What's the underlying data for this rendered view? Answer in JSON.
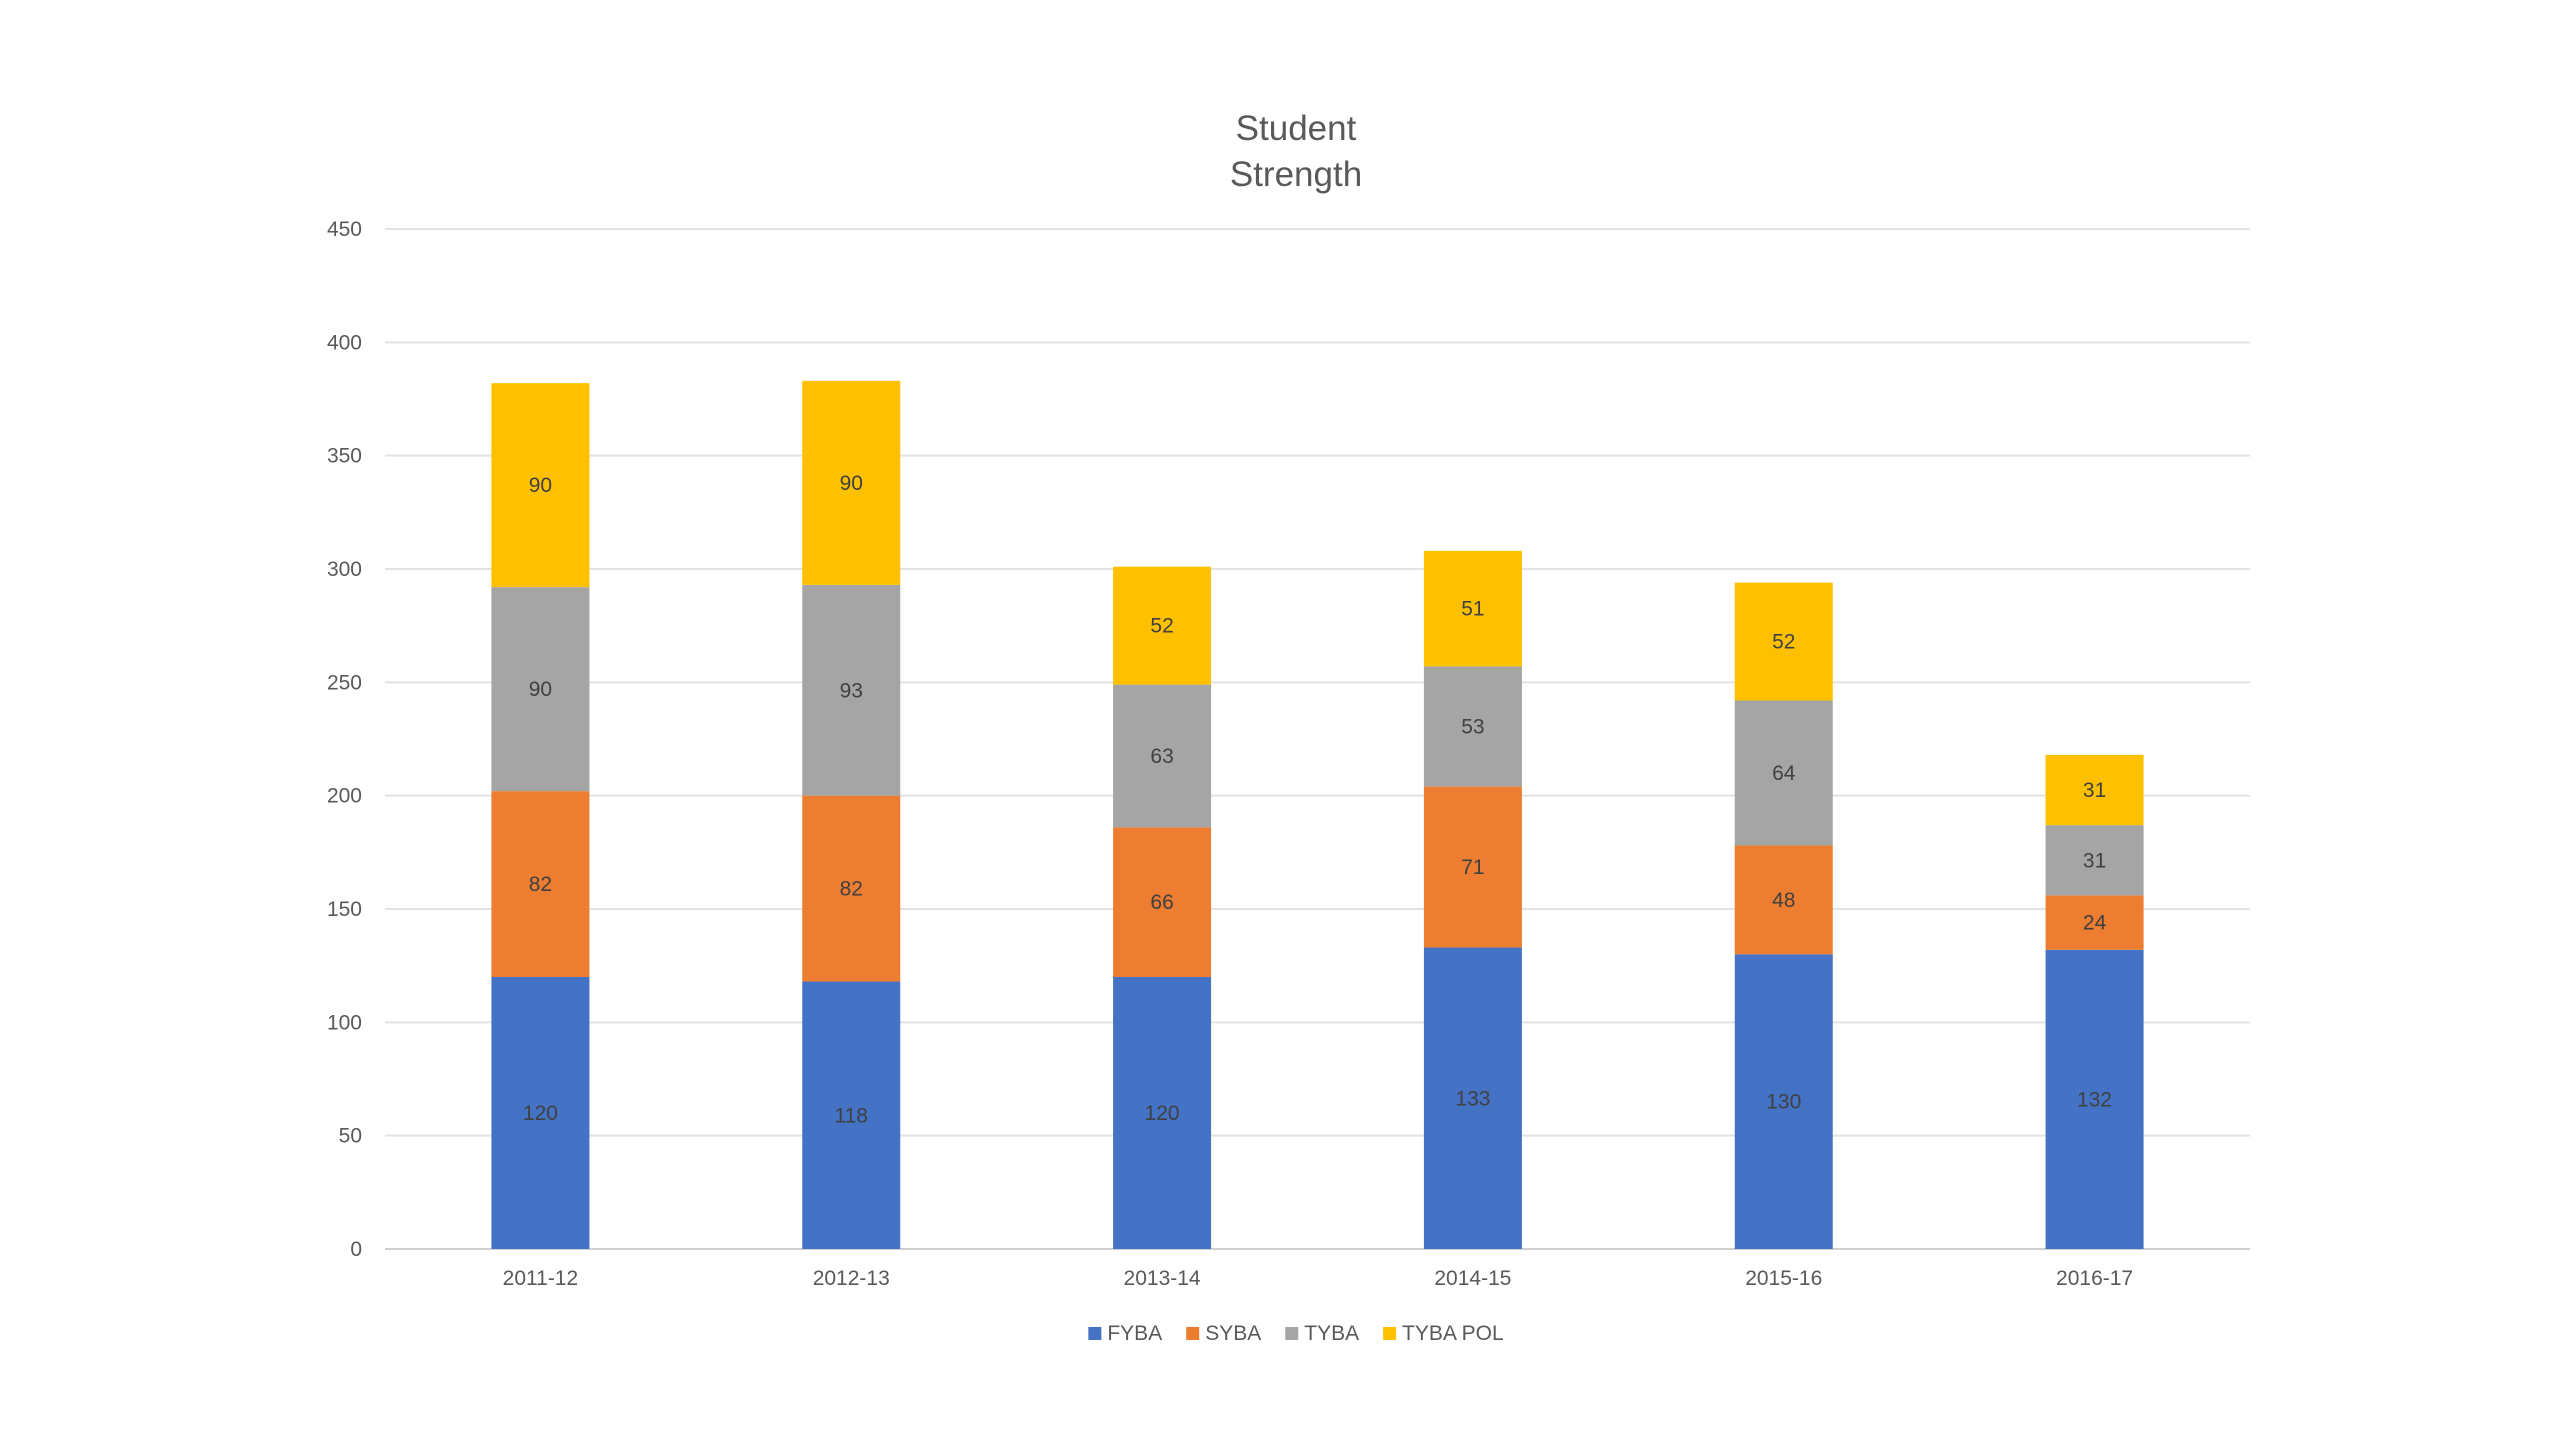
{
  "chart_data": {
    "type": "bar",
    "stacked": true,
    "title": [
      "Student",
      "Strength"
    ],
    "xlabel": "",
    "ylabel": "",
    "ylim": [
      0,
      450
    ],
    "yticks": [
      0,
      50,
      100,
      150,
      200,
      250,
      300,
      350,
      400,
      450
    ],
    "grid": true,
    "legend_position": "bottom",
    "categories": [
      "2011-12",
      "2012-13",
      "2013-14",
      "2014-15",
      "2015-16",
      "2016-17"
    ],
    "series": [
      {
        "name": "FYBA",
        "color": "#4472C4",
        "values": [
          120,
          118,
          120,
          133,
          130,
          132
        ]
      },
      {
        "name": "SYBA",
        "color": "#ED7D31",
        "values": [
          82,
          82,
          66,
          71,
          48,
          24
        ]
      },
      {
        "name": "TYBA",
        "color": "#A5A5A5",
        "values": [
          90,
          93,
          63,
          53,
          64,
          31
        ]
      },
      {
        "name": "TYBA POL",
        "color": "#FFC000",
        "values": [
          90,
          90,
          52,
          51,
          52,
          31
        ]
      }
    ]
  }
}
